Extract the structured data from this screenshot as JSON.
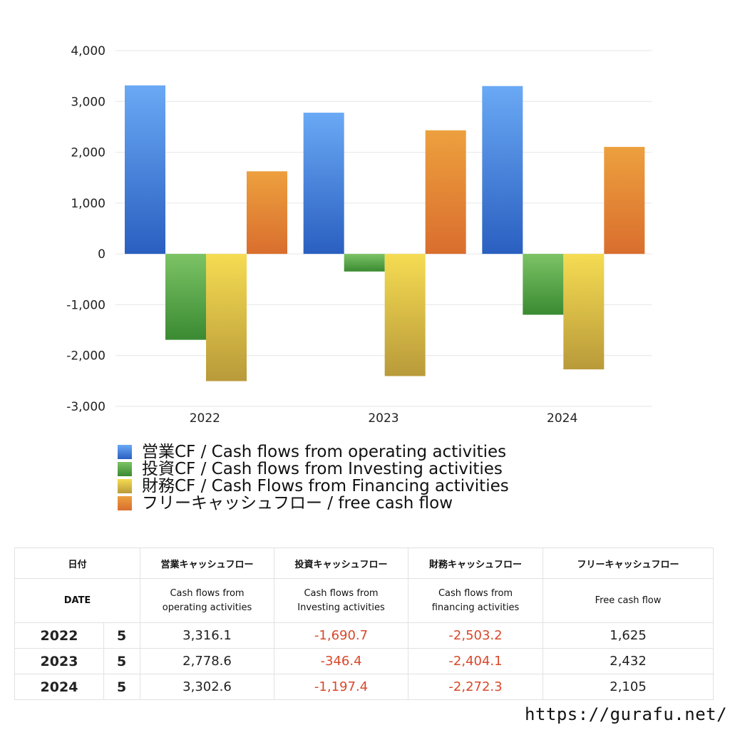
{
  "chart_data": {
    "type": "bar",
    "categories": [
      "2022",
      "2023",
      "2024"
    ],
    "ylim": [
      -3000,
      4000
    ],
    "yticks": [
      4000,
      3000,
      2000,
      1000,
      0,
      -1000,
      -2000,
      -3000
    ],
    "ytick_labels": [
      "4,000",
      "3,000",
      "2,000",
      "1,000",
      "0",
      "-1,000",
      "-2,000",
      "-3,000"
    ],
    "grid": true,
    "legend_position": "bottom",
    "series": [
      {
        "name": "営業CF / Cash flows from operating activities",
        "values": [
          3316.1,
          2778.6,
          3302.6
        ],
        "color_top": "#6aa9f5",
        "color_bottom": "#2a5fc0"
      },
      {
        "name": "投資CF / Cash flows from Investing activities",
        "values": [
          -1690.7,
          -346.4,
          -1197.4
        ],
        "color_top": "#7cc365",
        "color_bottom": "#3a8a32"
      },
      {
        "name": "財務CF / Cash Flows from Financing activities",
        "values": [
          -2503.2,
          -2404.1,
          -2272.3
        ],
        "color_top": "#f5dc52",
        "color_bottom": "#b99a3a"
      },
      {
        "name": "フリーキャッシュフロー / free cash flow",
        "values": [
          1625,
          2432,
          2105
        ],
        "color_top": "#eda03e",
        "color_bottom": "#d96e2e"
      }
    ]
  },
  "table": {
    "headers": [
      "日付",
      "営業キャッシュフロー",
      "投資キャッシュフロー",
      "財務キャッシュフロー",
      "フリーキャッシュフロー"
    ],
    "date_label": "DATE",
    "sub": [
      [
        "Cash flows from",
        "operating activities"
      ],
      [
        "Cash flows from",
        "Investing activities"
      ],
      [
        "Cash flows from",
        "financing activities"
      ],
      [
        "Free cash flow",
        ""
      ]
    ],
    "rows": [
      {
        "year": "2022",
        "month": "5",
        "op": "3,316.1",
        "inv": "-1,690.7",
        "fin": "-2,503.2",
        "fcf": "1,625"
      },
      {
        "year": "2023",
        "month": "5",
        "op": "2,778.6",
        "inv": "-346.4",
        "fin": "-2,404.1",
        "fcf": "2,432"
      },
      {
        "year": "2024",
        "month": "5",
        "op": "3,302.6",
        "inv": "-1,197.4",
        "fin": "-2,272.3",
        "fcf": "2,105"
      }
    ],
    "negative_color": "#d9482a"
  },
  "footer": {
    "url": "https://gurafu.net/"
  }
}
